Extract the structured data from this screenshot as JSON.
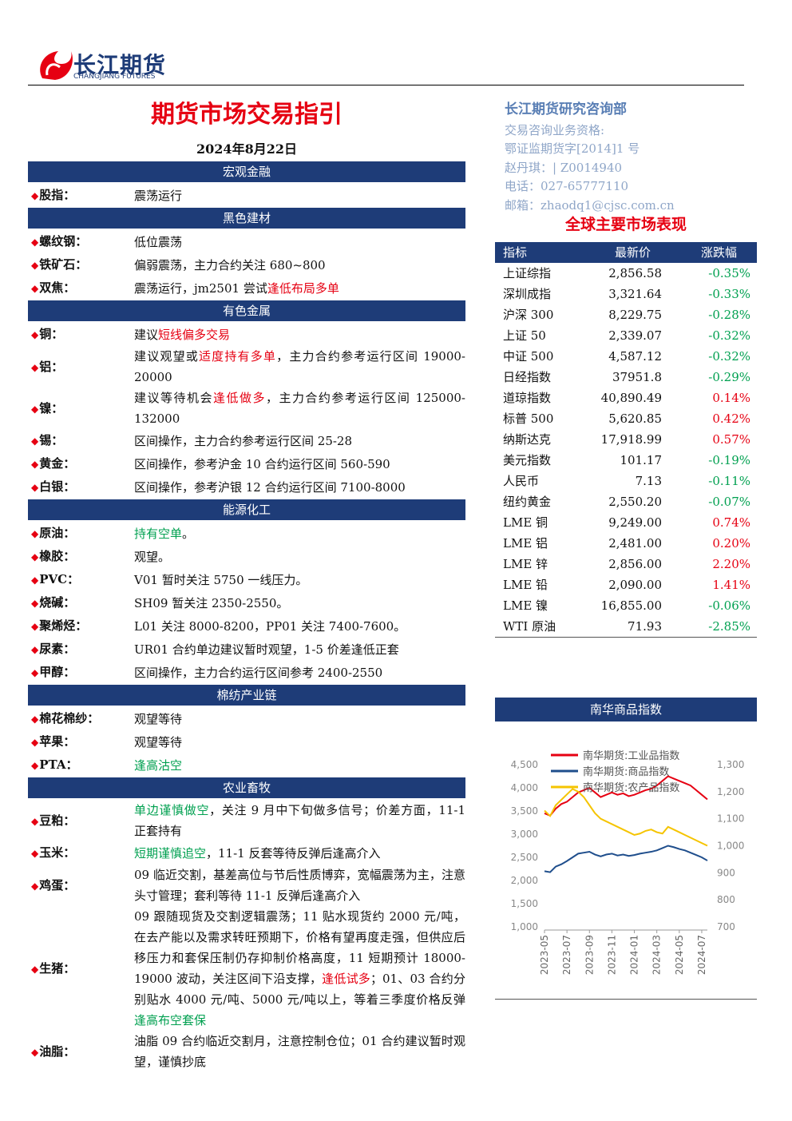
{
  "header": {
    "logo_cn": "长江期货",
    "logo_en": "CHANGJIANG FUTURES"
  },
  "title": "期货市场交易指引",
  "date": "2024年8月22日",
  "sections": [
    {
      "name": "宏观金融",
      "items": [
        {
          "label": "股指：",
          "text": [
            {
              "text": "震荡运行"
            }
          ]
        }
      ]
    },
    {
      "name": "黑色建材",
      "items": [
        {
          "label": "螺纹钢：",
          "text": [
            {
              "text": "低位震荡"
            }
          ]
        },
        {
          "label": "铁矿石：",
          "text": [
            {
              "text": "偏弱震荡，主力合约关注 680~800"
            }
          ]
        },
        {
          "label": "双焦：",
          "text": [
            {
              "text": "震荡运行，jm2501 尝试"
            },
            {
              "text": "逢低布局多单",
              "color": "#e60012"
            }
          ]
        }
      ]
    },
    {
      "name": "有色金属",
      "items": [
        {
          "label": "铜：",
          "text": [
            {
              "text": "建议"
            },
            {
              "text": "短线偏多交易",
              "color": "#e60012"
            }
          ]
        },
        {
          "label": "铝：",
          "text": [
            {
              "text": "建议观望或"
            },
            {
              "text": "适度持有多单",
              "color": "#e60012"
            },
            {
              "text": "，主力合约参考运行区间 19000-20000"
            }
          ]
        },
        {
          "label": "镍：",
          "text": [
            {
              "text": "建议等待机会"
            },
            {
              "text": "逢低做多",
              "color": "#e60012"
            },
            {
              "text": "，主力合约参考运行区间 125000-132000"
            }
          ]
        },
        {
          "label": "锡：",
          "text": [
            {
              "text": "区间操作，主力合约参考运行区间 25-28"
            }
          ]
        },
        {
          "label": "黄金：",
          "text": [
            {
              "text": "区间操作，参考沪金 10 合约运行区间 560-590"
            }
          ]
        },
        {
          "label": "白银：",
          "text": [
            {
              "text": "区间操作，参考沪银 12 合约运行区间 7100-8000"
            }
          ]
        }
      ]
    },
    {
      "name": "能源化工",
      "items": [
        {
          "label": "原油：",
          "text": [
            {
              "text": "持有空单",
              "color": "#00a050"
            },
            {
              "text": "。"
            }
          ]
        },
        {
          "label": "橡胶：",
          "text": [
            {
              "text": "观望。"
            }
          ]
        },
        {
          "label": "PVC：",
          "text": [
            {
              "text": "V01 暂时关注 5750 一线压力。"
            }
          ]
        },
        {
          "label": "烧碱：",
          "text": [
            {
              "text": "SH09 暂关注 2350-2550。"
            }
          ]
        },
        {
          "label": "聚烯烃：",
          "text": [
            {
              "text": "L01 关注 8000-8200，PP01 关注 7400-7600。"
            }
          ]
        },
        {
          "label": "尿素：",
          "text": [
            {
              "text": "UR01 合约单边建议暂时观望，1-5 价差逢低正套"
            }
          ]
        },
        {
          "label": "甲醇：",
          "text": [
            {
              "text": "区间操作，主力合约运行区间参考 2400-2550"
            }
          ]
        }
      ]
    },
    {
      "name": "棉纺产业链",
      "items": [
        {
          "label": "棉花棉纱：",
          "text": [
            {
              "text": "观望等待"
            }
          ]
        },
        {
          "label": "苹果：",
          "text": [
            {
              "text": "观望等待"
            }
          ]
        },
        {
          "label": "PTA：",
          "text": [
            {
              "text": "逢高沽空",
              "color": "#00a050"
            }
          ]
        }
      ]
    },
    {
      "name": "农业畜牧",
      "items": [
        {
          "label": "豆粕：",
          "text": [
            {
              "text": "单边谨慎做空",
              "color": "#00a050"
            },
            {
              "text": "，关注 9 月中下旬做多信号；价差方面，11-1 正套持有"
            }
          ]
        },
        {
          "label": "玉米：",
          "text": [
            {
              "text": "短期谨慎追空",
              "color": "#00a050"
            },
            {
              "text": "，11-1 反套等待反弹后逢高介入"
            }
          ]
        },
        {
          "label": "鸡蛋：",
          "text": [
            {
              "text": "09 临近交割，基差高位与节后性质博弈，宽幅震荡为主，注意头寸管理；套利等待 11-1 反弹后逢高介入"
            }
          ]
        },
        {
          "label": "生猪：",
          "text": [
            {
              "text": "09 跟随现货及交割逻辑震荡；11 贴水现货约 2000 元/吨，在去产能以及需求转旺预期下，价格有望再度走强，但供应后移压力和套保压制仍存抑制价格高度，11 短期预计 18000-19000 波动，关注区间下沿支撑，"
            },
            {
              "text": "逢低试多",
              "color": "#e60012"
            },
            {
              "text": "；01、03 合约分别贴水 4000 元/吨、5000 元/吨以上，等着三季度价格反弹"
            },
            {
              "text": "逢高布空套保",
              "color": "#00a050"
            }
          ]
        },
        {
          "label": "油脂：",
          "text": [
            {
              "text": "油脂 09 合约临近交割月，注意控制仓位；01 合约建议暂时观望，谨慎抄底"
            }
          ]
        }
      ]
    }
  ],
  "contact": {
    "dept": "长江期货研究咨询部",
    "lines": [
      "交易咨询业务资格:",
      "鄂证监期货字[2014]1 号",
      "赵丹琪：| Z0014940",
      "电话：027-65777110",
      "邮箱：zhaodq1@cjsc.com.cn"
    ]
  },
  "market": {
    "title": "全球主要市场表现",
    "headers": [
      "指标",
      "最新价",
      "涨跌幅"
    ],
    "rows": [
      [
        "上证综指",
        "2,856.58",
        "-0.35%"
      ],
      [
        "深圳成指",
        "3,321.64",
        "-0.33%"
      ],
      [
        "沪深 300",
        "8,229.75",
        "-0.28%"
      ],
      [
        "上证 50",
        "2,339.07",
        "-0.32%"
      ],
      [
        "中证 500",
        "4,587.12",
        "-0.32%"
      ],
      [
        "日经指数",
        "37951.8",
        "-0.29%"
      ],
      [
        "道琼指数",
        "40,890.49",
        "0.14%"
      ],
      [
        "标普 500",
        "5,620.85",
        "0.42%"
      ],
      [
        "纳斯达克",
        "17,918.99",
        "0.57%"
      ],
      [
        "美元指数",
        "101.17",
        "-0.19%"
      ],
      [
        "人民币",
        "7.13",
        "-0.11%"
      ],
      [
        "纽约黄金",
        "2,550.20",
        "-0.07%"
      ],
      [
        "LME 铜",
        "9,249.00",
        "0.74%"
      ],
      [
        "LME 铝",
        "2,481.00",
        "0.20%"
      ],
      [
        "LME 锌",
        "2,856.00",
        "2.20%"
      ],
      [
        "LME 铅",
        "2,090.00",
        "1.41%"
      ],
      [
        "LME 镍",
        "16,855.00",
        "-0.06%"
      ],
      [
        "WTI 原油",
        "71.93",
        "-2.85%"
      ]
    ]
  },
  "chart_data": {
    "type": "line",
    "title": "南华商品指数",
    "categories": [
      "2023-05",
      null,
      null,
      null,
      "2023-07",
      null,
      null,
      null,
      "2023-09",
      null,
      null,
      null,
      "2023-11",
      null,
      null,
      null,
      "2024-01",
      null,
      null,
      null,
      "2024-03",
      null,
      null,
      null,
      "2024-05",
      null,
      null,
      null,
      "2024-07",
      null
    ],
    "series": [
      {
        "name": "南华期货:工业品指数",
        "color": "#e60012",
        "values": [
          3450,
          3400,
          3550,
          3650,
          3700,
          3800,
          3900,
          3950,
          4000,
          3900,
          3800,
          3850,
          3900,
          3850,
          3880,
          3820,
          3850,
          3900,
          3950,
          3980,
          4050,
          4150,
          4250,
          4200,
          4150,
          4100,
          4050,
          3950,
          3850,
          3750
        ]
      },
      {
        "name": "南华期货:商品指数",
        "color": "#1f4e8c",
        "values": [
          2200,
          2180,
          2300,
          2350,
          2420,
          2500,
          2580,
          2600,
          2620,
          2560,
          2520,
          2560,
          2580,
          2540,
          2560,
          2530,
          2550,
          2580,
          2600,
          2620,
          2650,
          2700,
          2750,
          2720,
          2680,
          2650,
          2600,
          2550,
          2500,
          2430
        ]
      },
      {
        "name": "南华期货:农产品指数",
        "color": "#f5c400",
        "axis": "y2",
        "values": [
          1130,
          1110,
          1150,
          1170,
          1190,
          1210,
          1200,
          1180,
          1150,
          1120,
          1100,
          1090,
          1080,
          1070,
          1060,
          1050,
          1040,
          1045,
          1055,
          1060,
          1050,
          1045,
          1070,
          1060,
          1050,
          1040,
          1030,
          1020,
          1010,
          1000
        ]
      }
    ],
    "ylim": [
      1000,
      4500
    ],
    "yticks": [
      {
        "value": 1000,
        "label": "1,000"
      },
      {
        "value": 1500,
        "label": "1,500"
      },
      {
        "value": 2000,
        "label": "2,000"
      },
      {
        "value": 2500,
        "label": "2,500"
      },
      {
        "value": 3000,
        "label": "3,000"
      },
      {
        "value": 3500,
        "label": "3,500"
      },
      {
        "value": 4000,
        "label": "4,000"
      },
      {
        "value": 4500,
        "label": "4,500"
      }
    ],
    "y2lim": [
      700,
      1300
    ],
    "y2ticks": [
      700,
      800,
      900,
      {
        "value": 1000,
        "label": "1,000"
      },
      {
        "value": 1100,
        "label": "1,100"
      },
      {
        "value": 1200,
        "label": "1,200"
      },
      {
        "value": 1300,
        "label": "1,300"
      }
    ]
  }
}
